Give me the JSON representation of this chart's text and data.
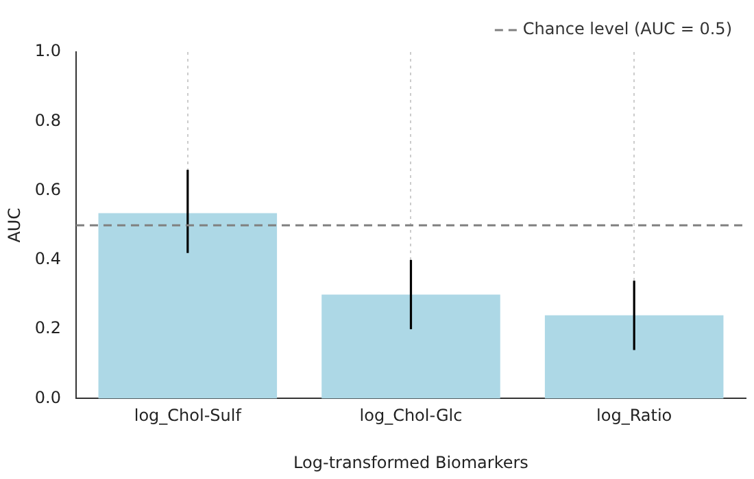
{
  "chart_data": {
    "type": "bar",
    "xlabel": "Log-transformed Biomarkers",
    "ylabel": "AUC",
    "categories": [
      "log_Chol-Sulf",
      "log_Chol-Glc",
      "log_Ratio"
    ],
    "values": [
      0.535,
      0.3,
      0.24
    ],
    "color": "#add8e6",
    "errors": [
      [
        0.42,
        0.66
      ],
      [
        0.2,
        0.4
      ],
      [
        0.14,
        0.34
      ]
    ],
    "ylim": [
      0,
      1
    ],
    "yticks": [
      {
        "value": 0,
        "label": "0.0"
      },
      0.2,
      0.4,
      0.6,
      0.8,
      {
        "value": 1,
        "label": "1.0"
      }
    ],
    "ref_lines": [
      {
        "axis": "y",
        "value": 0.5,
        "label": "Chance level (AUC = 0.5)",
        "color": "#808080",
        "line_style": "dashed"
      }
    ],
    "grid": "x",
    "legend": "top right"
  }
}
